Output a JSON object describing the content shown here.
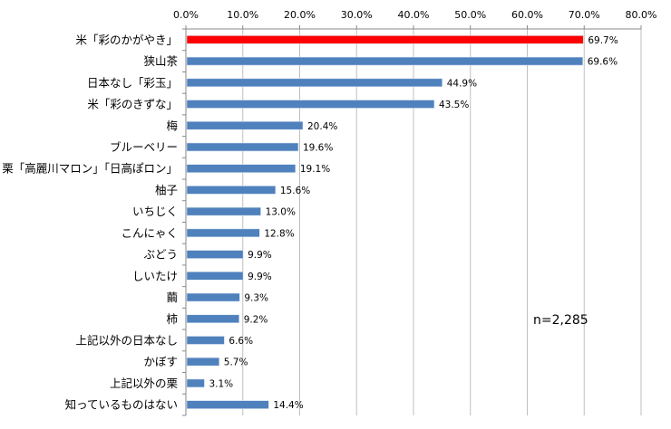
{
  "chart_data": {
    "type": "bar",
    "orientation": "horizontal",
    "categories": [
      "米「彩のかがやき」",
      "狭山茶",
      "日本なし「彩玉」",
      "米「彩のきずな」",
      "梅",
      "ブルーベリー",
      "栗「高麗川マロン」「日高ぽロン」",
      "柚子",
      "いちじく",
      "こんにゃく",
      "ぶどう",
      "しいたけ",
      "繭",
      "柿",
      "上記以外の日本なし",
      "かぼす",
      "上記以外の栗",
      "知っているものはない"
    ],
    "values": [
      69.7,
      69.6,
      44.9,
      43.5,
      20.4,
      19.6,
      19.1,
      15.6,
      13.0,
      12.8,
      9.9,
      9.9,
      9.3,
      9.2,
      6.6,
      5.7,
      3.1,
      14.4
    ],
    "data_labels": [
      "69.7%",
      "69.6%",
      "44.9%",
      "43.5%",
      "20.4%",
      "19.6%",
      "19.1%",
      "15.6%",
      "13.0%",
      "12.8%",
      "9.9%",
      "9.9%",
      "9.3%",
      "9.2%",
      "6.6%",
      "5.7%",
      "3.1%",
      "14.4%"
    ],
    "xlim": [
      0,
      80
    ],
    "x_ticks": [
      "0.0%",
      "10.0%",
      "20.0%",
      "30.0%",
      "40.0%",
      "50.0%",
      "60.0%",
      "70.0%",
      "80.0%"
    ],
    "x_axis_position": "top",
    "grid": true,
    "highlight_index": 0,
    "colors": {
      "bar": "#4f81bd",
      "highlight": "#ff0000",
      "grid": "#bfbfbf"
    },
    "annotation": "n=2,285"
  }
}
